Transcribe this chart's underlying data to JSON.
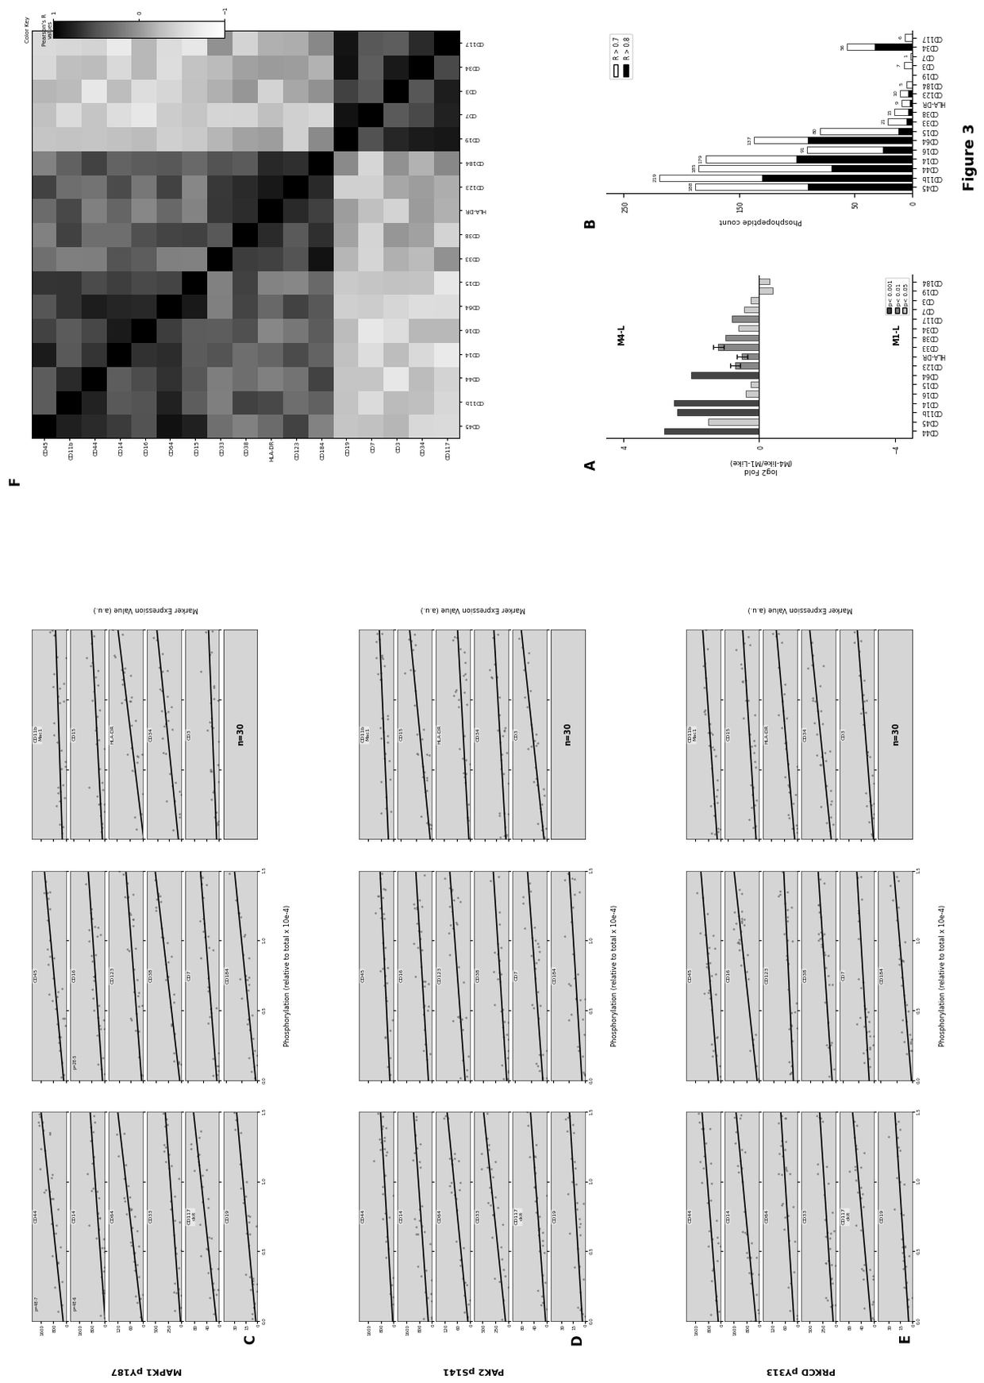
{
  "panel_A": {
    "categories": [
      "CD44",
      "CD45",
      "CD11b",
      "CD14",
      "CD16",
      "CD15",
      "CD64",
      "CD123",
      "HLA-DR",
      "CD33",
      "CD38",
      "CD34",
      "CD117",
      "CD7",
      "CD3",
      "CD19",
      "CD184"
    ],
    "pos_vals": [
      2.8,
      1.5,
      2.4,
      2.5,
      0.4,
      0.25,
      2.0,
      0.7,
      0.5,
      1.2,
      1.0,
      0.6,
      0.8,
      0.45,
      0.25,
      0.0,
      0.0
    ],
    "neg_vals": [
      0,
      0,
      0,
      0,
      0,
      0,
      0,
      0,
      0,
      0,
      0,
      0,
      0,
      0,
      0,
      -0.4,
      -0.3
    ],
    "sig": [
      0,
      2,
      0,
      0,
      2,
      2,
      0,
      1,
      1,
      1,
      1,
      2,
      1,
      2,
      2,
      2,
      2
    ],
    "colors": [
      "#444444",
      "#888888",
      "#cccccc"
    ],
    "ylabel": "log2 Fold\n(M4-like/M1-Like)",
    "legend_labels": [
      "p< 0.001",
      "p< 0.01",
      "p< 0.05"
    ],
    "ylim": [
      -4.5,
      4.5
    ],
    "top_label": "M4-L",
    "bottom_label": "M1-L"
  },
  "panel_B": {
    "categories": [
      "CD45",
      "CD11b",
      "CD44",
      "CD14",
      "CD16",
      "CD64",
      "CD15",
      "CD33",
      "CD38",
      "HLA-DR",
      "CD123",
      "CD184",
      "CD19",
      "CD3",
      "CD7",
      "CD34",
      "CD117"
    ],
    "r07_vals": [
      188,
      219,
      185,
      179,
      91,
      137,
      80,
      21,
      15,
      9,
      10,
      5,
      0,
      7,
      1,
      56,
      6
    ],
    "r08_vals": [
      90,
      130,
      70,
      100,
      25,
      90,
      12,
      5,
      3,
      2,
      3,
      0,
      0,
      0,
      0,
      32,
      0
    ],
    "ylabel": "Phosphopeptide count",
    "yticks": [
      0,
      50,
      150,
      250
    ],
    "ylim": [
      0,
      265
    ],
    "legend_labels": [
      "R > 0.7",
      "R > 0.8"
    ]
  },
  "heatmap": {
    "labels_top": [
      "CD45",
      "CD11b",
      "CD44",
      "CD14",
      "CD16",
      "CD64",
      "CD15",
      "CD33",
      "CD38",
      "HLA-DR",
      "CD123",
      "CD184",
      "CD19",
      "CD7",
      "CD3",
      "CD34",
      "CD117"
    ],
    "labels_right": [
      "CD45",
      "CD11b",
      "CD44",
      "CD14",
      "CD16",
      "CD64",
      "CD15",
      "CD33",
      "CD38",
      "HLA-DR",
      "CD123",
      "CD184",
      "CD19",
      "CD7",
      "CD3",
      "CD34",
      "CD117"
    ],
    "colorbar_ticks": [
      -1,
      0,
      1
    ],
    "colorbar_title": "Color Key",
    "colorbar_label": "Pearson's R\nvalues"
  },
  "scatter_cols": [
    [
      "CD44",
      "CD14",
      "CD64",
      "CD33",
      "CD117_ckit",
      "CD19"
    ],
    [
      "CD45",
      "CD16",
      "CD123",
      "CD38",
      "CD7",
      "CD184"
    ],
    [
      "CD11b_Mac1",
      "CD15",
      "HLA-DR",
      "CD34",
      "CD3",
      "n=30"
    ]
  ],
  "phospho_labels": [
    "MAPK1 pY187",
    "PAK2 pS141",
    "PRKCD pY313"
  ],
  "panel_letters_bottom": [
    "C",
    "D",
    "E"
  ],
  "figure_label": "Figure 3"
}
